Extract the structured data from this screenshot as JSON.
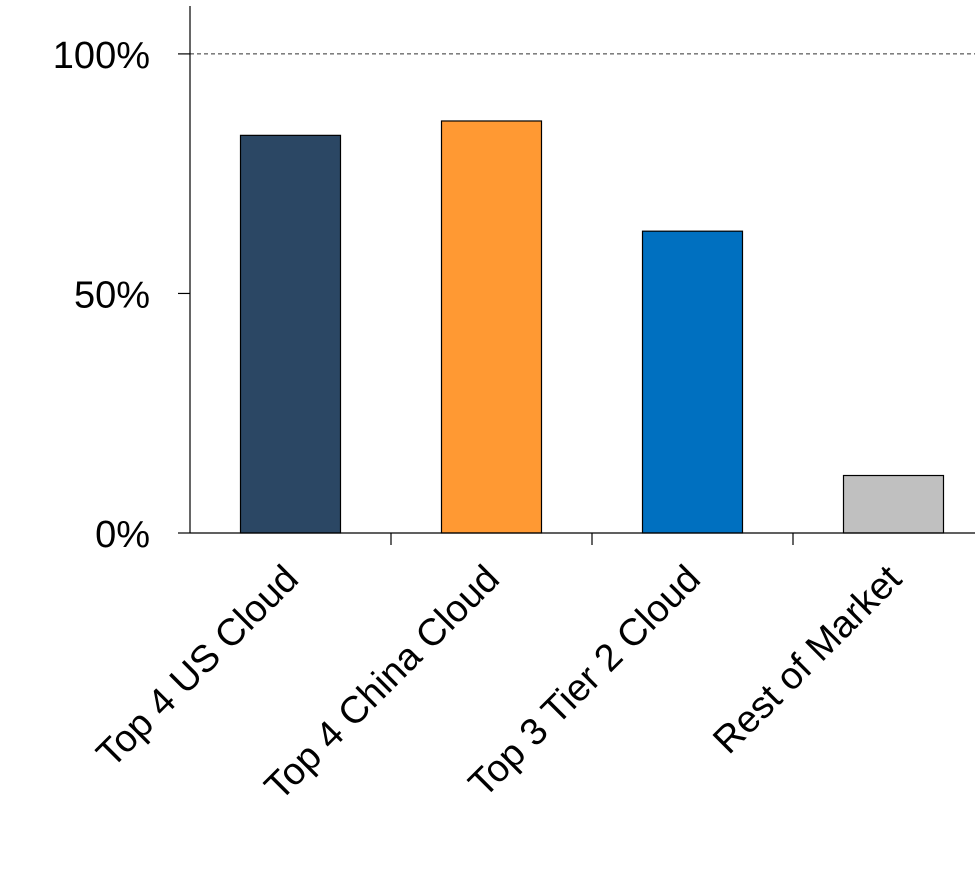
{
  "chart_data": {
    "type": "bar",
    "title": "",
    "xlabel": "",
    "ylabel": "",
    "categories": [
      "Top 4 US Cloud",
      "Top 4 China Cloud",
      "Top 3 Tier 2 Cloud",
      "Rest of Market"
    ],
    "values": [
      83,
      86,
      63,
      12
    ],
    "colors": [
      "#2B4764",
      "#FF9933",
      "#0070C0",
      "#C0C0C0"
    ],
    "ylim": [
      0,
      110
    ],
    "yticks": [
      0,
      50,
      100
    ],
    "ytick_labels": [
      "0%",
      "50%",
      "100%"
    ],
    "reference_line": {
      "value": 100,
      "style": "dashed"
    },
    "grid": false,
    "legend": "none"
  }
}
